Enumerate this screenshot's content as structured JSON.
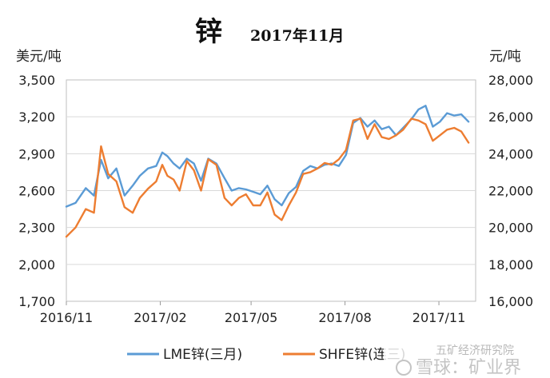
{
  "chart_data": {
    "type": "line",
    "title": "锌",
    "subtitle": "2017年11月",
    "y_left_unit": "美元/吨",
    "y_right_unit": "元/吨",
    "y_left_ticks": [
      "3,500",
      "3,200",
      "2,900",
      "2,600",
      "2,300",
      "2,000",
      "1,700"
    ],
    "y_right_ticks": [
      "28,000",
      "26,000",
      "24,000",
      "22,000",
      "20,000",
      "18,000",
      "16,000"
    ],
    "x_ticks": [
      "2016/11",
      "2017/02",
      "2017/05",
      "2017/08",
      "2017/11"
    ],
    "y_left_lim": [
      1700,
      3500
    ],
    "y_right_lim": [
      16000,
      28000
    ],
    "grid": true,
    "legend_position": "bottom",
    "series": [
      {
        "name": "LME锌(三月)",
        "axis": "left",
        "color": "#5B9BD5",
        "x": [
          "2016/11/01",
          "2016/11/10",
          "2016/11/20",
          "2016/11/28",
          "2016/12/05",
          "2016/12/12",
          "2016/12/20",
          "2016/12/28",
          "2017/01/05",
          "2017/01/12",
          "2017/01/20",
          "2017/01/28",
          "2017/02/03",
          "2017/02/08",
          "2017/02/14",
          "2017/02/20",
          "2017/02/27",
          "2017/03/06",
          "2017/03/13",
          "2017/03/20",
          "2017/03/28",
          "2017/04/05",
          "2017/04/12",
          "2017/04/19",
          "2017/04/26",
          "2017/05/03",
          "2017/05/10",
          "2017/05/17",
          "2017/05/24",
          "2017/05/31",
          "2017/06/07",
          "2017/06/14",
          "2017/06/21",
          "2017/06/28",
          "2017/07/05",
          "2017/07/12",
          "2017/07/19",
          "2017/07/26",
          "2017/08/02",
          "2017/08/09",
          "2017/08/16",
          "2017/08/23",
          "2017/08/30",
          "2017/09/06",
          "2017/09/13",
          "2017/09/20",
          "2017/09/27",
          "2017/10/05",
          "2017/10/12",
          "2017/10/19",
          "2017/10/26",
          "2017/11/02",
          "2017/11/09",
          "2017/11/16",
          "2017/11/23",
          "2017/11/30"
        ],
        "values": [
          2470,
          2500,
          2620,
          2560,
          2850,
          2700,
          2780,
          2560,
          2640,
          2720,
          2780,
          2800,
          2910,
          2880,
          2820,
          2780,
          2860,
          2820,
          2680,
          2860,
          2820,
          2700,
          2600,
          2620,
          2610,
          2590,
          2570,
          2640,
          2530,
          2480,
          2580,
          2630,
          2760,
          2800,
          2780,
          2810,
          2820,
          2800,
          2890,
          3150,
          3190,
          3120,
          3170,
          3100,
          3120,
          3050,
          3110,
          3180,
          3260,
          3290,
          3120,
          3160,
          3230,
          3210,
          3220,
          3160
        ]
      },
      {
        "name": "SHFE锌(连三)",
        "axis": "right",
        "color": "#ED7D31",
        "x": [
          "2016/11/01",
          "2016/11/10",
          "2016/11/20",
          "2016/11/28",
          "2016/12/05",
          "2016/12/12",
          "2016/12/20",
          "2016/12/28",
          "2017/01/05",
          "2017/01/12",
          "2017/01/20",
          "2017/01/28",
          "2017/02/03",
          "2017/02/08",
          "2017/02/14",
          "2017/02/20",
          "2017/02/27",
          "2017/03/06",
          "2017/03/13",
          "2017/03/20",
          "2017/03/28",
          "2017/04/05",
          "2017/04/12",
          "2017/04/19",
          "2017/04/26",
          "2017/05/03",
          "2017/05/10",
          "2017/05/17",
          "2017/05/24",
          "2017/05/31",
          "2017/06/07",
          "2017/06/14",
          "2017/06/21",
          "2017/06/28",
          "2017/07/05",
          "2017/07/12",
          "2017/07/19",
          "2017/07/26",
          "2017/08/02",
          "2017/08/09",
          "2017/08/16",
          "2017/08/23",
          "2017/08/30",
          "2017/09/06",
          "2017/09/13",
          "2017/09/20",
          "2017/09/27",
          "2017/10/05",
          "2017/10/12",
          "2017/10/19",
          "2017/10/26",
          "2017/11/02",
          "2017/11/09",
          "2017/11/16",
          "2017/11/23",
          "2017/11/30"
        ],
        "values": [
          19500,
          20000,
          21000,
          20800,
          24400,
          22900,
          22500,
          21100,
          20800,
          21600,
          22100,
          22500,
          23400,
          22800,
          22600,
          22000,
          23600,
          23100,
          22000,
          23700,
          23400,
          21600,
          21200,
          21600,
          21800,
          21200,
          21200,
          21900,
          20700,
          20400,
          21200,
          21900,
          22900,
          23000,
          23200,
          23500,
          23400,
          23700,
          24200,
          25800,
          25900,
          24800,
          25600,
          24900,
          24800,
          25000,
          25300,
          25900,
          25800,
          25600,
          24700,
          25000,
          25300,
          25400,
          25200,
          24600
        ]
      }
    ]
  },
  "watermark": {
    "line1": "五矿经济研究院",
    "line2": "雪球：矿业界"
  }
}
